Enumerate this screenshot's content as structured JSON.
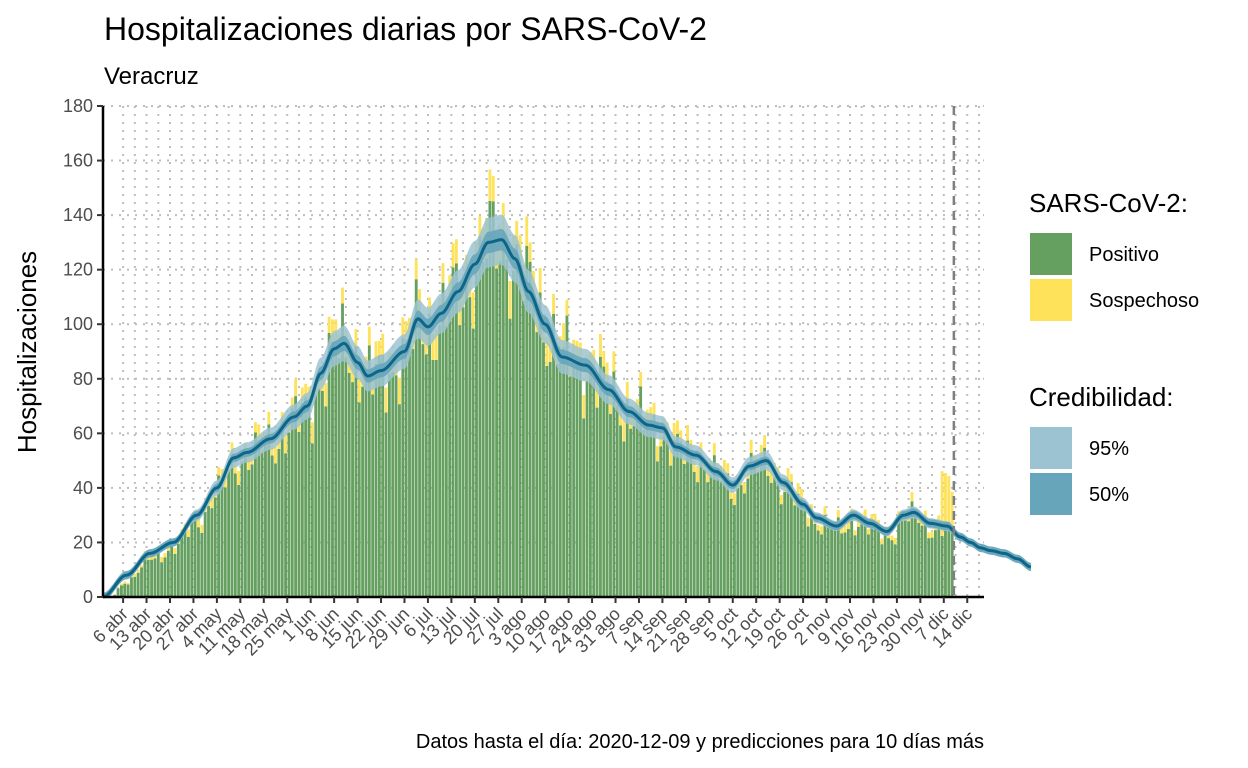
{
  "chart_data": {
    "type": "bar",
    "title": "Hospitalizaciones diarias por SARS-CoV-2",
    "subtitle": "Veracruz",
    "ylabel": "Hospitalizaciones",
    "caption": "Datos hasta el día: 2020-12-09 y predicciones para 10 días más",
    "ylim": [
      0,
      180
    ],
    "y_ticks": [
      0,
      20,
      40,
      60,
      80,
      100,
      120,
      140,
      160,
      180
    ],
    "x_start": "2020-03-31",
    "x_end": "2020-12-19",
    "data_end": "2020-12-09",
    "x_tick_labels": [
      "6 abr",
      "13 abr",
      "20 abr",
      "27 abr",
      "4 may",
      "11 may",
      "18 may",
      "25 may",
      "1 jun",
      "8 jun",
      "15 jun",
      "22 jun",
      "29 jun",
      "6 jul",
      "13 jul",
      "20 jul",
      "27 jul",
      "3 ago",
      "10 ago",
      "17 ago",
      "24 ago",
      "31 ago",
      "7 sep",
      "14 sep",
      "21 sep",
      "28 sep",
      "5 oct",
      "12 oct",
      "19 oct",
      "26 oct",
      "2 nov",
      "9 nov",
      "16 nov",
      "23 nov",
      "30 nov",
      "7 dic",
      "14 dic"
    ],
    "grid": true,
    "legend_position": "right",
    "legend": {
      "status": {
        "title": "SARS-CoV-2:",
        "items": [
          {
            "label": "Positivo",
            "color": "#66a061"
          },
          {
            "label": "Sospechoso",
            "color": "#fde25a"
          }
        ]
      },
      "credibility": {
        "title": "Credibilidad:",
        "items": [
          {
            "label": "95%",
            "color": "#9cc3d1"
          },
          {
            "label": "50%",
            "color": "#67a5bb"
          }
        ]
      }
    },
    "series_meta": {
      "positive_color": "#66a061",
      "suspect_color": "#fde25a",
      "trend_color": "#0d6687",
      "band95_color": "#9cc3d1",
      "band50_color": "#67a5bb"
    },
    "trend_keypoints": [
      {
        "x": "2020-03-31",
        "y": 0
      },
      {
        "x": "2020-04-07",
        "y": 8
      },
      {
        "x": "2020-04-14",
        "y": 16
      },
      {
        "x": "2020-04-21",
        "y": 20
      },
      {
        "x": "2020-04-28",
        "y": 30
      },
      {
        "x": "2020-05-04",
        "y": 40
      },
      {
        "x": "2020-05-09",
        "y": 51
      },
      {
        "x": "2020-05-13",
        "y": 53
      },
      {
        "x": "2020-05-20",
        "y": 58
      },
      {
        "x": "2020-05-27",
        "y": 66
      },
      {
        "x": "2020-05-31",
        "y": 70
      },
      {
        "x": "2020-06-04",
        "y": 82
      },
      {
        "x": "2020-06-08",
        "y": 91
      },
      {
        "x": "2020-06-11",
        "y": 93
      },
      {
        "x": "2020-06-15",
        "y": 86
      },
      {
        "x": "2020-06-18",
        "y": 81
      },
      {
        "x": "2020-06-22",
        "y": 83
      },
      {
        "x": "2020-06-29",
        "y": 90
      },
      {
        "x": "2020-07-03",
        "y": 102
      },
      {
        "x": "2020-07-06",
        "y": 99
      },
      {
        "x": "2020-07-10",
        "y": 104
      },
      {
        "x": "2020-07-15",
        "y": 112
      },
      {
        "x": "2020-07-20",
        "y": 122
      },
      {
        "x": "2020-07-24",
        "y": 130
      },
      {
        "x": "2020-07-28",
        "y": 131
      },
      {
        "x": "2020-08-01",
        "y": 124
      },
      {
        "x": "2020-08-05",
        "y": 112
      },
      {
        "x": "2020-08-10",
        "y": 100
      },
      {
        "x": "2020-08-15",
        "y": 88
      },
      {
        "x": "2020-08-22",
        "y": 85
      },
      {
        "x": "2020-08-29",
        "y": 76
      },
      {
        "x": "2020-09-04",
        "y": 68
      },
      {
        "x": "2020-09-10",
        "y": 63
      },
      {
        "x": "2020-09-14",
        "y": 62
      },
      {
        "x": "2020-09-18",
        "y": 55
      },
      {
        "x": "2020-09-24",
        "y": 52
      },
      {
        "x": "2020-09-30",
        "y": 46
      },
      {
        "x": "2020-10-05",
        "y": 41
      },
      {
        "x": "2020-10-10",
        "y": 48
      },
      {
        "x": "2020-10-15",
        "y": 50
      },
      {
        "x": "2020-10-20",
        "y": 42
      },
      {
        "x": "2020-10-26",
        "y": 34
      },
      {
        "x": "2020-10-30",
        "y": 29
      },
      {
        "x": "2020-11-05",
        "y": 26
      },
      {
        "x": "2020-11-10",
        "y": 30
      },
      {
        "x": "2020-11-15",
        "y": 27
      },
      {
        "x": "2020-11-20",
        "y": 24
      },
      {
        "x": "2020-11-25",
        "y": 30
      },
      {
        "x": "2020-11-28",
        "y": 31
      },
      {
        "x": "2020-12-03",
        "y": 27
      },
      {
        "x": "2020-12-08",
        "y": 26
      },
      {
        "x": "2020-12-12",
        "y": 22
      },
      {
        "x": "2020-12-15",
        "y": 20
      },
      {
        "x": "2020-12-18",
        "y": 18
      },
      {
        "x": "2020-12-21",
        "y": 17
      },
      {
        "x": "2020-12-25",
        "y": 16
      },
      {
        "x": "2020-12-29",
        "y": 14
      },
      {
        "x": "2021-01-02",
        "y": 11
      }
    ],
    "trend_ci": {
      "band95_halfwidth_fraction": 0.07,
      "band50_halfwidth_fraction": 0.03
    }
  }
}
